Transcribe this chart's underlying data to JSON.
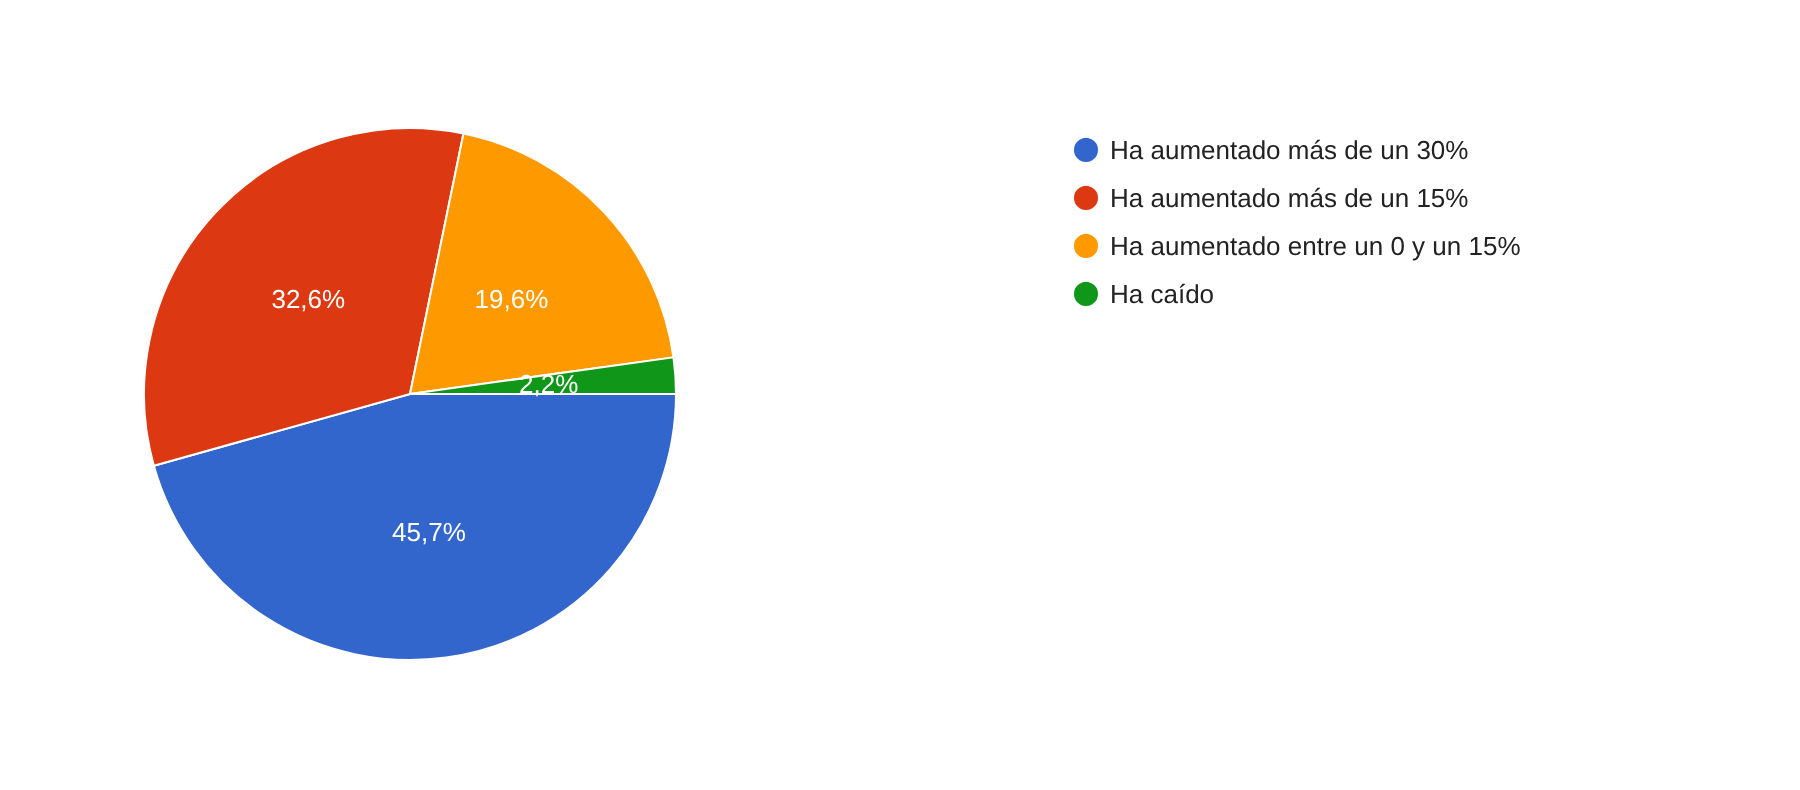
{
  "chart_data": {
    "type": "pie",
    "categories": [
      "Ha aumentado más de un 30%",
      "Ha aumentado más de un 15%",
      "Ha aumentado entre un 0 y un 15%",
      "Ha caído"
    ],
    "values": [
      45.7,
      32.6,
      19.6,
      2.2
    ],
    "value_labels": [
      "45,7%",
      "32,6%",
      "19,6%",
      "2,2%"
    ],
    "colors": [
      "#3366cc",
      "#dc3912",
      "#ff9900",
      "#109618"
    ],
    "legend": "top right"
  }
}
